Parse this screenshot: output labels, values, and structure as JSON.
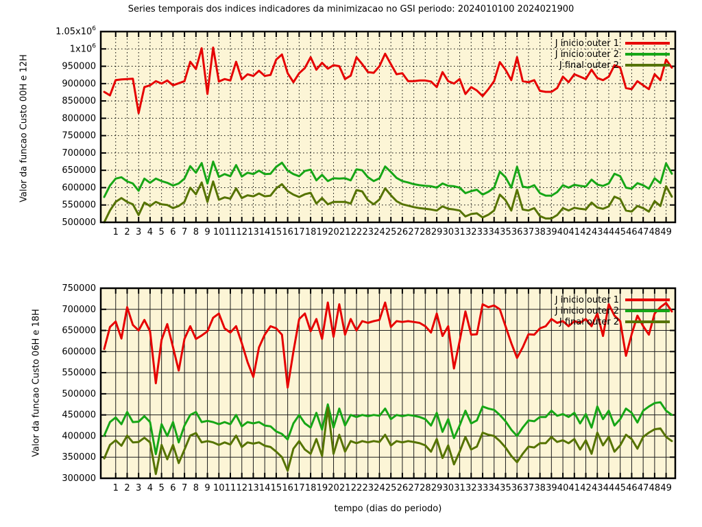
{
  "title": "Series temporais dos indices indicadores da minimizacao no GSI periodo: 2024010100 2024021900",
  "xlabel": "tempo (dias do periodo)",
  "plot_background": "#fcf5d6",
  "colors": {
    "red": "#e60000",
    "green": "#16a616",
    "olive": "#557300"
  },
  "chart_data": [
    {
      "type": "line",
      "ylabel": "Valor da funcao Custo 00H e 12H",
      "ylim": [
        500000,
        1050000
      ],
      "ytick_step": 50000,
      "ytick_labels": [
        "500000",
        "550000",
        "600000",
        "650000",
        "700000",
        "750000",
        "800000",
        "850000",
        "900000",
        "950000",
        "1x10^6",
        "1.05x10^6"
      ],
      "xlim": [
        -0.3,
        49.8
      ],
      "xticks": [
        1,
        2,
        3,
        4,
        5,
        6,
        7,
        8,
        9,
        10,
        11,
        12,
        13,
        14,
        15,
        16,
        17,
        18,
        19,
        20,
        21,
        22,
        23,
        24,
        25,
        26,
        27,
        28,
        29,
        30,
        31,
        32,
        33,
        34,
        35,
        36,
        37,
        38,
        39,
        40,
        41,
        42,
        43,
        44,
        45,
        46,
        47,
        48,
        49
      ],
      "x_start": 0,
      "x_step": 0.5,
      "grid_style": "dotted",
      "legend_position": "top-right",
      "series": [
        {
          "name": "J inicio outer 1",
          "color_key": "red",
          "values": [
            876000,
            866000,
            910000,
            912000,
            913000,
            914000,
            815000,
            890000,
            895000,
            907000,
            900000,
            909000,
            895000,
            901000,
            907000,
            963000,
            942000,
            1002000,
            870000,
            1004000,
            906000,
            913000,
            909000,
            963000,
            912000,
            927000,
            922000,
            937000,
            922000,
            925000,
            969000,
            984000,
            930000,
            904000,
            930000,
            945000,
            976000,
            940000,
            960000,
            943000,
            953000,
            950000,
            913000,
            923000,
            976000,
            956000,
            933000,
            931000,
            950000,
            986000,
            956000,
            927000,
            930000,
            907000,
            907000,
            909000,
            909000,
            906000,
            890000,
            933000,
            907000,
            900000,
            913000,
            870000,
            890000,
            880000,
            864000,
            884000,
            907000,
            962000,
            940000,
            910000,
            976000,
            907000,
            904000,
            910000,
            879000,
            876000,
            876000,
            887000,
            920000,
            904000,
            927000,
            920000,
            913000,
            940000,
            916000,
            910000,
            920000,
            953000,
            946000,
            887000,
            884000,
            907000,
            895000,
            884000,
            927000,
            910000,
            969000,
            946000
          ]
        },
        {
          "name": "J inicio outer 2",
          "color_key": "green",
          "values": [
            573000,
            606000,
            626000,
            630000,
            618000,
            612000,
            591000,
            626000,
            614000,
            626000,
            619000,
            614000,
            606000,
            612000,
            626000,
            662000,
            643000,
            671000,
            612000,
            675000,
            631000,
            639000,
            633000,
            665000,
            632000,
            643000,
            639000,
            649000,
            639000,
            640000,
            660000,
            672000,
            649000,
            639000,
            633000,
            648000,
            652000,
            621000,
            637000,
            619000,
            627000,
            626000,
            627000,
            621000,
            653000,
            650000,
            630000,
            619000,
            627000,
            661000,
            645000,
            628000,
            619000,
            615000,
            610000,
            607000,
            605000,
            604000,
            600000,
            612000,
            605000,
            604000,
            600000,
            584000,
            590000,
            594000,
            580000,
            588000,
            600000,
            646000,
            630000,
            600000,
            660000,
            603000,
            600000,
            607000,
            584000,
            577000,
            577000,
            587000,
            607000,
            600000,
            608000,
            605000,
            603000,
            623000,
            609000,
            605000,
            612000,
            640000,
            633000,
            600000,
            597000,
            613000,
            607000,
            597000,
            627000,
            613000,
            670000,
            640000
          ]
        },
        {
          "name": "J  final outer 2",
          "color_key": "olive",
          "values": [
            500000,
            534000,
            559000,
            570000,
            559000,
            552000,
            521000,
            557000,
            547000,
            559000,
            552000,
            550000,
            541000,
            547000,
            559000,
            600000,
            581000,
            615000,
            559000,
            618000,
            565000,
            572000,
            568000,
            598000,
            570000,
            578000,
            575000,
            583000,
            575000,
            577000,
            598000,
            610000,
            590000,
            580000,
            573000,
            581000,
            585000,
            554000,
            570000,
            552000,
            559000,
            559000,
            559000,
            554000,
            593000,
            589000,
            564000,
            552000,
            566000,
            598000,
            578000,
            561000,
            552000,
            548000,
            544000,
            541000,
            539000,
            537000,
            534000,
            546000,
            539000,
            537000,
            534000,
            517000,
            524000,
            526000,
            514000,
            522000,
            534000,
            580000,
            564000,
            534000,
            594000,
            537000,
            534000,
            541000,
            518000,
            511000,
            511000,
            521000,
            541000,
            534000,
            542000,
            539000,
            537000,
            557000,
            543000,
            539000,
            546000,
            574000,
            567000,
            534000,
            531000,
            547000,
            541000,
            531000,
            561000,
            547000,
            604000,
            574000
          ]
        }
      ]
    },
    {
      "type": "line",
      "ylabel": "Valor da funcao Custo 06H e 18H",
      "ylim": [
        300000,
        750000
      ],
      "ytick_step": 50000,
      "ytick_labels": [
        "300000",
        "350000",
        "400000",
        "450000",
        "500000",
        "550000",
        "600000",
        "650000",
        "700000",
        "750000"
      ],
      "xlim": [
        -0.3,
        49.8
      ],
      "xticks": [
        1,
        2,
        3,
        4,
        5,
        6,
        7,
        8,
        9,
        10,
        11,
        12,
        13,
        14,
        15,
        16,
        17,
        18,
        19,
        20,
        21,
        22,
        23,
        24,
        25,
        26,
        27,
        28,
        29,
        30,
        31,
        32,
        33,
        34,
        35,
        36,
        37,
        38,
        39,
        40,
        41,
        42,
        43,
        44,
        45,
        46,
        47,
        48,
        49
      ],
      "x_start": 0,
      "x_step": 0.5,
      "grid_style": "solid",
      "legend_position": "top-right",
      "series": [
        {
          "name": "J inicio outer 1",
          "color_key": "red",
          "values": [
            606000,
            658000,
            671000,
            631000,
            705000,
            663000,
            650000,
            675000,
            648000,
            525000,
            628000,
            665000,
            610000,
            555000,
            630000,
            660000,
            630000,
            638000,
            648000,
            680000,
            690000,
            655000,
            645000,
            660000,
            620000,
            575000,
            540000,
            610000,
            640000,
            660000,
            655000,
            640000,
            515000,
            600000,
            677000,
            690000,
            648000,
            677000,
            630000,
            716000,
            635000,
            712000,
            640000,
            677000,
            650000,
            672000,
            668000,
            672000,
            675000,
            716000,
            658000,
            672000,
            670000,
            672000,
            670000,
            668000,
            660000,
            645000,
            690000,
            637000,
            660000,
            560000,
            625000,
            695000,
            640000,
            641000,
            712000,
            705000,
            709000,
            700000,
            660000,
            620000,
            585000,
            610000,
            641000,
            640000,
            655000,
            660000,
            677000,
            668000,
            672000,
            660000,
            672000,
            668000,
            677000,
            660000,
            690000,
            637000,
            712000,
            685000,
            672000,
            590000,
            641000,
            685000,
            660000,
            640000,
            690000,
            705000,
            715000,
            695000
          ]
        },
        {
          "name": "J inicio outer 2",
          "color_key": "green",
          "values": [
            401000,
            433000,
            444000,
            428000,
            457000,
            433000,
            434000,
            447000,
            433000,
            357000,
            428000,
            400000,
            433000,
            385000,
            425000,
            450000,
            457000,
            433000,
            436000,
            433000,
            428000,
            433000,
            428000,
            450000,
            423000,
            433000,
            430000,
            433000,
            425000,
            423000,
            411000,
            405000,
            392000,
            430000,
            450000,
            430000,
            420000,
            455000,
            415000,
            475000,
            420000,
            465000,
            425000,
            450000,
            445000,
            450000,
            447000,
            450000,
            448000,
            465000,
            440000,
            450000,
            447000,
            450000,
            448000,
            445000,
            440000,
            425000,
            455000,
            410000,
            440000,
            395000,
            425000,
            460000,
            430000,
            437000,
            470000,
            465000,
            462000,
            450000,
            435000,
            415000,
            400000,
            420000,
            437000,
            435000,
            445000,
            445000,
            460000,
            448000,
            452000,
            445000,
            455000,
            430000,
            452000,
            420000,
            470000,
            440000,
            460000,
            425000,
            440000,
            465000,
            455000,
            432000,
            460000,
            470000,
            478000,
            480000,
            460000,
            450000
          ]
        },
        {
          "name": "J final outer 2",
          "color_key": "olive",
          "values": [
            347000,
            379000,
            390000,
            377000,
            401000,
            385000,
            386000,
            396000,
            385000,
            310000,
            379000,
            345000,
            379000,
            336000,
            368000,
            401000,
            407000,
            385000,
            388000,
            385000,
            379000,
            385000,
            380000,
            401000,
            374000,
            385000,
            382000,
            385000,
            377000,
            374000,
            363000,
            350000,
            318000,
            370000,
            388000,
            368000,
            358000,
            393000,
            353000,
            467000,
            358000,
            403000,
            363000,
            388000,
            383000,
            388000,
            385000,
            388000,
            386000,
            403000,
            378000,
            388000,
            385000,
            388000,
            386000,
            383000,
            378000,
            363000,
            393000,
            348000,
            378000,
            333000,
            363000,
            398000,
            368000,
            375000,
            408000,
            403000,
            400000,
            388000,
            373000,
            353000,
            338000,
            358000,
            375000,
            373000,
            383000,
            383000,
            398000,
            386000,
            390000,
            383000,
            393000,
            368000,
            390000,
            358000,
            408000,
            378000,
            398000,
            363000,
            378000,
            403000,
            393000,
            370000,
            398000,
            408000,
            416000,
            418000,
            398000,
            388000
          ]
        }
      ]
    }
  ]
}
